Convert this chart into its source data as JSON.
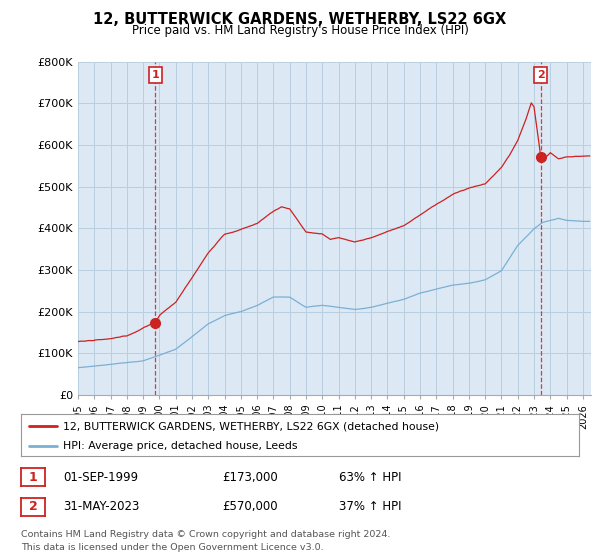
{
  "title": "12, BUTTERWICK GARDENS, WETHERBY, LS22 6GX",
  "subtitle": "Price paid vs. HM Land Registry's House Price Index (HPI)",
  "ylim": [
    0,
    800000
  ],
  "yticks": [
    0,
    100000,
    200000,
    300000,
    400000,
    500000,
    600000,
    700000,
    800000
  ],
  "ytick_labels": [
    "£0",
    "£100K",
    "£200K",
    "£300K",
    "£400K",
    "£500K",
    "£600K",
    "£700K",
    "£800K"
  ],
  "sale1_date": 1999.75,
  "sale1_price": 173000,
  "sale1_label": "1",
  "sale2_date": 2023.42,
  "sale2_price": 570000,
  "sale2_label": "2",
  "sale_color": "#cc2222",
  "hpi_color": "#7bafd4",
  "price_color": "#cc2222",
  "plot_bg_color": "#dce9f5",
  "grid_color": "#b8cfe0",
  "legend_line1": "12, BUTTERWICK GARDENS, WETHERBY, LS22 6GX (detached house)",
  "legend_line2": "HPI: Average price, detached house, Leeds",
  "table_row1_num": "1",
  "table_row1_date": "01-SEP-1999",
  "table_row1_price": "£173,000",
  "table_row1_hpi": "63% ↑ HPI",
  "table_row2_num": "2",
  "table_row2_date": "31-MAY-2023",
  "table_row2_price": "£570,000",
  "table_row2_hpi": "37% ↑ HPI",
  "footnote1": "Contains HM Land Registry data © Crown copyright and database right 2024.",
  "footnote2": "This data is licensed under the Open Government Licence v3.0.",
  "background_color": "#ffffff"
}
